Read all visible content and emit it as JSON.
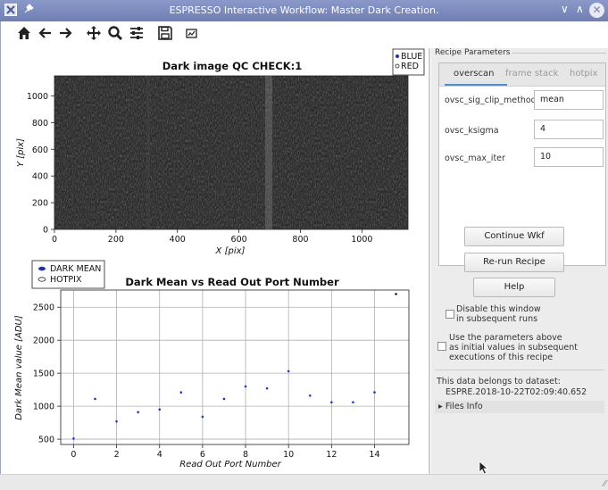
{
  "window": {
    "title": "ESPRESSO Interactive Workflow: Master Dark Creation.",
    "app_icon": "x-window-icon",
    "pin_icon": "pin-icon",
    "minimize_glyph": "∨",
    "maximize_glyph": "∧",
    "close_glyph": "✕"
  },
  "toolbar": {
    "home": "⌂",
    "back": "←",
    "forward": "→",
    "pan": "✥",
    "zoom": "🔍",
    "configure": "☰",
    "save": "💾",
    "edit": "▦"
  },
  "plot1": {
    "title": "Dark image QC CHECK:1",
    "xlabel": "X [pix]",
    "ylabel": "Y [pix]",
    "x_ticks": [
      "0",
      "200",
      "400",
      "600",
      "800",
      "1000"
    ],
    "y_ticks": [
      "0",
      "200",
      "400",
      "600",
      "800",
      "1000"
    ],
    "legend": [
      "BLUE",
      "RED"
    ]
  },
  "chart_data": [
    {
      "type": "heatmap",
      "title": "Dark image QC CHECK:1",
      "xlabel": "X [pix]",
      "ylabel": "Y [pix]",
      "xlim": [
        0,
        1150
      ],
      "ylim": [
        0,
        1150
      ],
      "legend": [
        "BLUE",
        "RED"
      ]
    },
    {
      "type": "scatter",
      "title": "Dark Mean vs Read Out Port Number",
      "xlabel": "Read Out Port Number",
      "ylabel": "Dark Mean value [ADU]",
      "xlim": [
        -0.6,
        15.6
      ],
      "ylim": [
        420,
        2760
      ],
      "x_ticks": [
        0,
        2,
        4,
        6,
        8,
        10,
        12,
        14
      ],
      "y_ticks": [
        500,
        1000,
        1500,
        2000,
        2500
      ],
      "grid": true,
      "legend": [
        "DARK MEAN",
        "HOTPIX"
      ],
      "legend_placement": "top-left",
      "series": [
        {
          "name": "DARK MEAN",
          "x": [
            0,
            1,
            2,
            3,
            4,
            5,
            6,
            7,
            8,
            9,
            10,
            11,
            12,
            13,
            14,
            15
          ],
          "y": [
            510,
            1110,
            770,
            910,
            950,
            1210,
            840,
            1110,
            1300,
            1270,
            1530,
            1160,
            1060,
            1060,
            1210,
            2700
          ]
        }
      ]
    }
  ],
  "plot2": {
    "title": "Dark Mean vs Read Out Port Number",
    "xlabel": "Read Out Port Number",
    "ylabel": "Dark Mean value [ADU]",
    "x_ticks": [
      "0",
      "2",
      "4",
      "6",
      "8",
      "10",
      "12",
      "14"
    ],
    "y_ticks": [
      "500",
      "1000",
      "1500",
      "2000",
      "2500"
    ],
    "legend": [
      "DARK MEAN",
      "HOTPIX"
    ]
  },
  "recipe": {
    "group_title": "Recipe Parameters",
    "tabs": [
      "overscan",
      "frame stack",
      "hotpix"
    ],
    "params": [
      {
        "name": "ovsc_sig_clip_method",
        "value": "mean"
      },
      {
        "name": "ovsc_ksigma",
        "value": "4"
      },
      {
        "name": "ovsc_max_iter",
        "value": "10"
      }
    ]
  },
  "buttons": {
    "continue": "Continue Wkf",
    "rerun": "Re-run Recipe",
    "help": "Help"
  },
  "options": {
    "disable_line1": "Disable this window",
    "disable_line2": "in subsequent runs",
    "use_line1": "Use the parameters above",
    "use_line2": "as initial values in subsequent",
    "use_line3": "executions of this recipe"
  },
  "dataset": {
    "line1": "This data belongs to dataset:",
    "line2": "ESPRE.2018-10-22T02:09:40.652",
    "files_info": "Files Info",
    "files_info_arrow": "▸"
  },
  "statusbar": {
    "grip": "⁄⁄"
  }
}
